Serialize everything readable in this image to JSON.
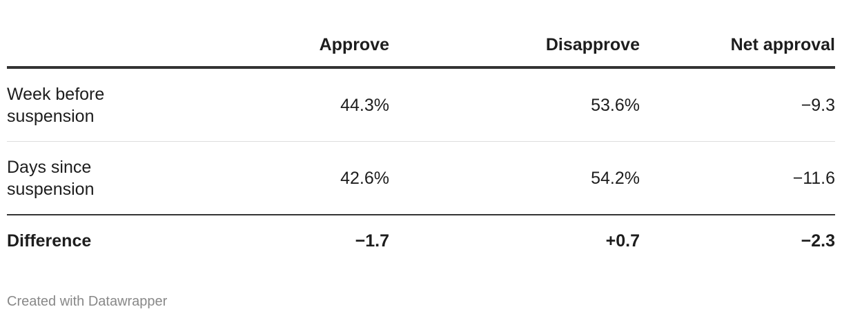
{
  "table": {
    "header": [
      "",
      "Approve",
      "Disapprove",
      "Net approval"
    ],
    "rows": [
      [
        "Week before suspension",
        "44.3%",
        "53.6%",
        "−9.3"
      ],
      [
        "Days since suspension",
        "42.6%",
        "54.2%",
        "−11.6"
      ]
    ],
    "footer": [
      "Difference",
      "−1.7",
      "+0.7",
      "−2.3"
    ]
  },
  "credit": "Created with Datawrapper"
}
